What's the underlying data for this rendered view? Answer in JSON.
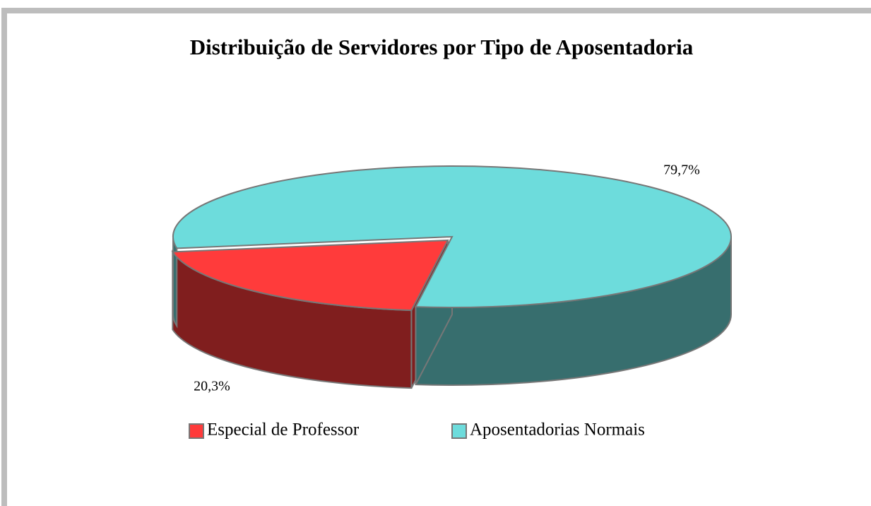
{
  "chart_data": {
    "type": "pie3d",
    "title": "Distribuição de Servidores por Tipo de Aposentadoria",
    "categories": [
      "Especial de Professor",
      "Aposentadorias Normais"
    ],
    "values": [
      20.3,
      79.7
    ],
    "value_labels": [
      "20,3%",
      "79,7%"
    ],
    "colors": [
      "#ff3b3b",
      "#6ddcdc"
    ],
    "legend": "bottom"
  }
}
